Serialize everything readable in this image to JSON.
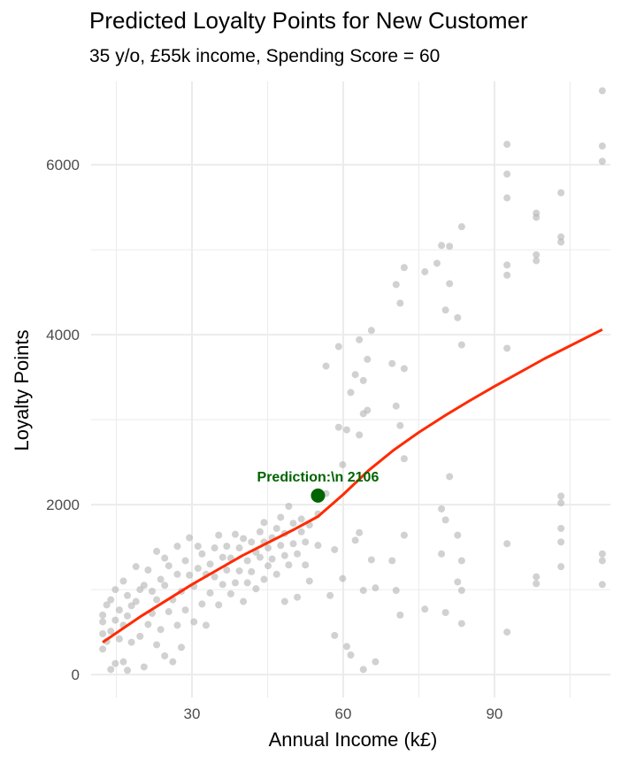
{
  "chart_data": {
    "type": "scatter",
    "title": "Predicted Loyalty Points for New Customer",
    "subtitle": "35 y/o, £55k income, Spending Score = 60",
    "xlabel": "Annual Income (k£)",
    "ylabel": "Loyalty Points",
    "xlim": [
      10,
      113
    ],
    "ylim": [
      -270,
      6980
    ],
    "x_ticks": [
      30,
      60,
      90
    ],
    "y_ticks": [
      0,
      2000,
      4000,
      6000
    ],
    "grid": true,
    "points": [
      [
        12.3,
        300
      ],
      [
        12.3,
        480
      ],
      [
        12.3,
        620
      ],
      [
        12.3,
        700
      ],
      [
        13.1,
        390
      ],
      [
        13.1,
        820
      ],
      [
        13.9,
        60
      ],
      [
        13.9,
        510
      ],
      [
        13.9,
        880
      ],
      [
        14.8,
        130
      ],
      [
        14.8,
        640
      ],
      [
        14.8,
        1000
      ],
      [
        15.6,
        420
      ],
      [
        15.6,
        760
      ],
      [
        16.4,
        150
      ],
      [
        16.4,
        580
      ],
      [
        16.4,
        1100
      ],
      [
        17.2,
        50
      ],
      [
        17.2,
        690
      ],
      [
        17.2,
        930
      ],
      [
        18.0,
        380
      ],
      [
        18.0,
        810
      ],
      [
        18.9,
        1270
      ],
      [
        18.9,
        860
      ],
      [
        19.7,
        450
      ],
      [
        19.7,
        1000
      ],
      [
        20.5,
        90
      ],
      [
        20.5,
        1050
      ],
      [
        21.3,
        590
      ],
      [
        21.3,
        1230
      ],
      [
        22.1,
        720
      ],
      [
        22.1,
        980
      ],
      [
        23.0,
        350
      ],
      [
        23.0,
        880
      ],
      [
        23.0,
        1450
      ],
      [
        23.8,
        530
      ],
      [
        23.8,
        1120
      ],
      [
        24.6,
        220
      ],
      [
        24.6,
        1050
      ],
      [
        24.6,
        1370
      ],
      [
        25.4,
        740
      ],
      [
        25.4,
        1280
      ],
      [
        26.2,
        150
      ],
      [
        26.2,
        880
      ],
      [
        27.1,
        580
      ],
      [
        27.1,
        1510
      ],
      [
        27.1,
        1180
      ],
      [
        27.9,
        980
      ],
      [
        27.9,
        320
      ],
      [
        28.7,
        760
      ],
      [
        28.7,
        1340
      ],
      [
        29.5,
        1170
      ],
      [
        29.5,
        1610
      ],
      [
        30.4,
        620
      ],
      [
        30.4,
        1040
      ],
      [
        31.2,
        1510
      ],
      [
        31.2,
        1250
      ],
      [
        32.0,
        830
      ],
      [
        32.0,
        1420
      ],
      [
        32.8,
        580
      ],
      [
        32.8,
        1180
      ],
      [
        33.6,
        1300
      ],
      [
        33.6,
        960
      ],
      [
        34.5,
        1490
      ],
      [
        34.5,
        1150
      ],
      [
        35.3,
        820
      ],
      [
        35.3,
        1640
      ],
      [
        36.1,
        1380
      ],
      [
        36.1,
        1060
      ],
      [
        36.9,
        1510
      ],
      [
        36.9,
        1230
      ],
      [
        37.7,
        950
      ],
      [
        37.7,
        1370
      ],
      [
        38.6,
        1650
      ],
      [
        38.6,
        1080
      ],
      [
        39.4,
        1220
      ],
      [
        39.4,
        1490
      ],
      [
        40.2,
        860
      ],
      [
        40.2,
        1600
      ],
      [
        41.0,
        1340
      ],
      [
        41.0,
        1080
      ],
      [
        41.8,
        1560
      ],
      [
        41.8,
        1210
      ],
      [
        42.7,
        1440
      ],
      [
        42.7,
        1010
      ],
      [
        43.5,
        1680
      ],
      [
        43.5,
        1380
      ],
      [
        44.3,
        1120
      ],
      [
        44.3,
        1790
      ],
      [
        44.3,
        1560
      ],
      [
        45.1,
        1280
      ],
      [
        45.1,
        1490
      ],
      [
        45.9,
        1360
      ],
      [
        45.9,
        1610
      ],
      [
        46.8,
        1720
      ],
      [
        46.8,
        1180
      ],
      [
        47.6,
        1520
      ],
      [
        47.6,
        1850
      ],
      [
        48.4,
        860
      ],
      [
        48.4,
        1400
      ],
      [
        48.4,
        1660
      ],
      [
        49.2,
        1290
      ],
      [
        49.2,
        1980
      ],
      [
        50.1,
        1540
      ],
      [
        50.1,
        1780
      ],
      [
        50.9,
        1420
      ],
      [
        50.9,
        910
      ],
      [
        51.7,
        1680
      ],
      [
        51.7,
        1830
      ],
      [
        52.5,
        1290
      ],
      [
        52.5,
        1560
      ],
      [
        53.3,
        1100
      ],
      [
        53.3,
        1760
      ],
      [
        55.0,
        1520
      ],
      [
        55.0,
        1890
      ],
      [
        56.6,
        2130
      ],
      [
        56.6,
        3630
      ],
      [
        57.4,
        930
      ],
      [
        58.3,
        460
      ],
      [
        58.3,
        1470
      ],
      [
        59.1,
        2910
      ],
      [
        59.1,
        3860
      ],
      [
        59.9,
        1130
      ],
      [
        59.9,
        2470
      ],
      [
        60.7,
        330
      ],
      [
        60.7,
        2880
      ],
      [
        61.5,
        230
      ],
      [
        61.5,
        3320
      ],
      [
        62.4,
        1580
      ],
      [
        62.4,
        3530
      ],
      [
        63.2,
        1670
      ],
      [
        63.2,
        2820
      ],
      [
        63.2,
        3940
      ],
      [
        64.0,
        60
      ],
      [
        64.0,
        990
      ],
      [
        64.0,
        3460
      ],
      [
        64.0,
        3070
      ],
      [
        64.8,
        3110
      ],
      [
        64.8,
        3710
      ],
      [
        65.6,
        1350
      ],
      [
        65.6,
        4050
      ],
      [
        66.4,
        1020
      ],
      [
        66.4,
        150
      ],
      [
        69.7,
        1340
      ],
      [
        69.7,
        3660
      ],
      [
        70.5,
        4590
      ],
      [
        70.5,
        990
      ],
      [
        70.5,
        3160
      ],
      [
        71.3,
        4370
      ],
      [
        71.3,
        2930
      ],
      [
        71.3,
        700
      ],
      [
        72.1,
        1640
      ],
      [
        72.1,
        3600
      ],
      [
        72.1,
        4790
      ],
      [
        72.1,
        2540
      ],
      [
        76.2,
        770
      ],
      [
        76.2,
        4740
      ],
      [
        78.6,
        4840
      ],
      [
        79.5,
        5050
      ],
      [
        79.5,
        1420
      ],
      [
        79.5,
        1950
      ],
      [
        80.3,
        4290
      ],
      [
        80.3,
        1820
      ],
      [
        80.3,
        730
      ],
      [
        81.1,
        5040
      ],
      [
        81.1,
        2330
      ],
      [
        81.1,
        4600
      ],
      [
        82.7,
        1640
      ],
      [
        82.7,
        4200
      ],
      [
        82.7,
        1090
      ],
      [
        83.5,
        5270
      ],
      [
        83.5,
        1340
      ],
      [
        83.5,
        3880
      ],
      [
        83.5,
        990
      ],
      [
        83.5,
        600
      ],
      [
        92.5,
        4820
      ],
      [
        92.5,
        4700
      ],
      [
        92.5,
        5610
      ],
      [
        92.5,
        5890
      ],
      [
        92.5,
        6240
      ],
      [
        92.5,
        3840
      ],
      [
        92.5,
        1540
      ],
      [
        92.5,
        500
      ],
      [
        98.3,
        5380
      ],
      [
        98.3,
        5430
      ],
      [
        98.3,
        1150
      ],
      [
        98.3,
        4940
      ],
      [
        98.3,
        1070
      ],
      [
        98.3,
        4870
      ],
      [
        103.2,
        5150
      ],
      [
        103.2,
        5090
      ],
      [
        103.2,
        5670
      ],
      [
        103.2,
        1270
      ],
      [
        103.2,
        2100
      ],
      [
        103.2,
        1720
      ],
      [
        103.2,
        2020
      ],
      [
        103.2,
        1560
      ],
      [
        111.4,
        6040
      ],
      [
        111.4,
        6220
      ],
      [
        111.4,
        6870
      ],
      [
        111.4,
        1420
      ],
      [
        111.4,
        1340
      ],
      [
        111.4,
        1060
      ]
    ],
    "trend_line": [
      [
        12.3,
        380
      ],
      [
        20,
        690
      ],
      [
        30,
        1060
      ],
      [
        40,
        1400
      ],
      [
        50,
        1700
      ],
      [
        55,
        1860
      ],
      [
        60,
        2120
      ],
      [
        65,
        2400
      ],
      [
        70,
        2640
      ],
      [
        75,
        2850
      ],
      [
        80,
        3040
      ],
      [
        85,
        3220
      ],
      [
        90,
        3390
      ],
      [
        100,
        3720
      ],
      [
        111.4,
        4060
      ]
    ],
    "prediction": {
      "x": 55,
      "y": 2106,
      "label": "Prediction:\\n 2106"
    },
    "colors": {
      "points": "#b3b3b3",
      "trend_line": "#ff2a00",
      "prediction": "#006400",
      "grid": "#ebebeb"
    }
  }
}
